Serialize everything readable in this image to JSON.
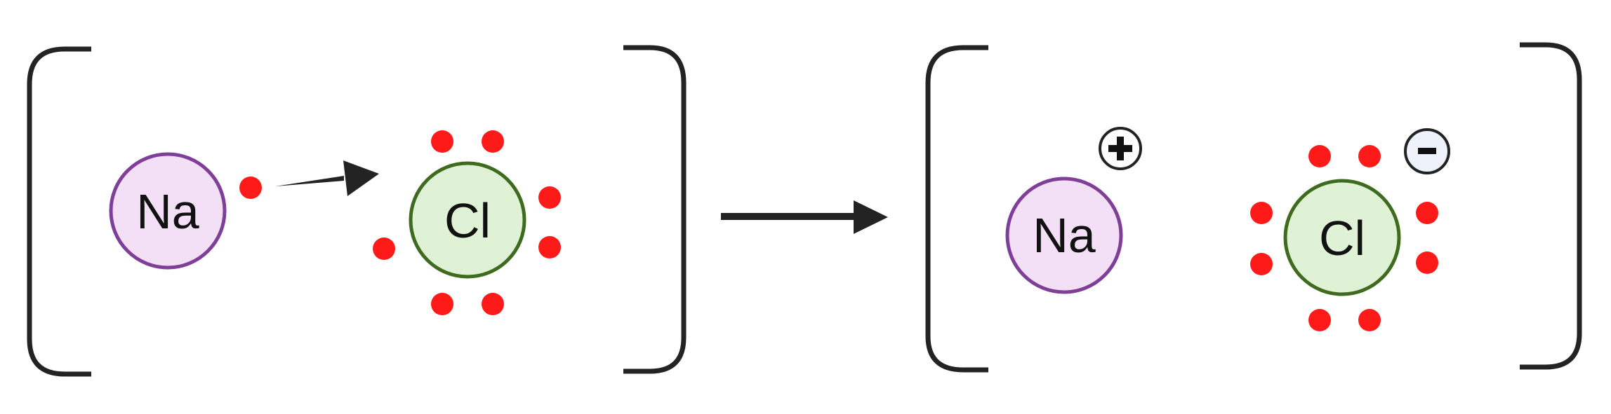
{
  "reactants": {
    "sodium": {
      "symbol": "Na",
      "fill": "#f3e0f7",
      "stroke": "#7f3f98"
    },
    "chlorine": {
      "symbol": "Cl",
      "fill": "#dff2d6",
      "stroke": "#3f6b1f"
    }
  },
  "products": {
    "sodium_ion": {
      "symbol": "Na",
      "charge": "+",
      "fill": "#f3e0f7",
      "stroke": "#7f3f98"
    },
    "chloride_ion": {
      "symbol": "Cl",
      "charge": "-",
      "fill": "#dff2d6",
      "stroke": "#3f6b1f",
      "charge_fill": "#eef2fb"
    }
  },
  "colors": {
    "electron": "#ff1a1a",
    "bracket": "#232323",
    "arrow": "#232323"
  }
}
